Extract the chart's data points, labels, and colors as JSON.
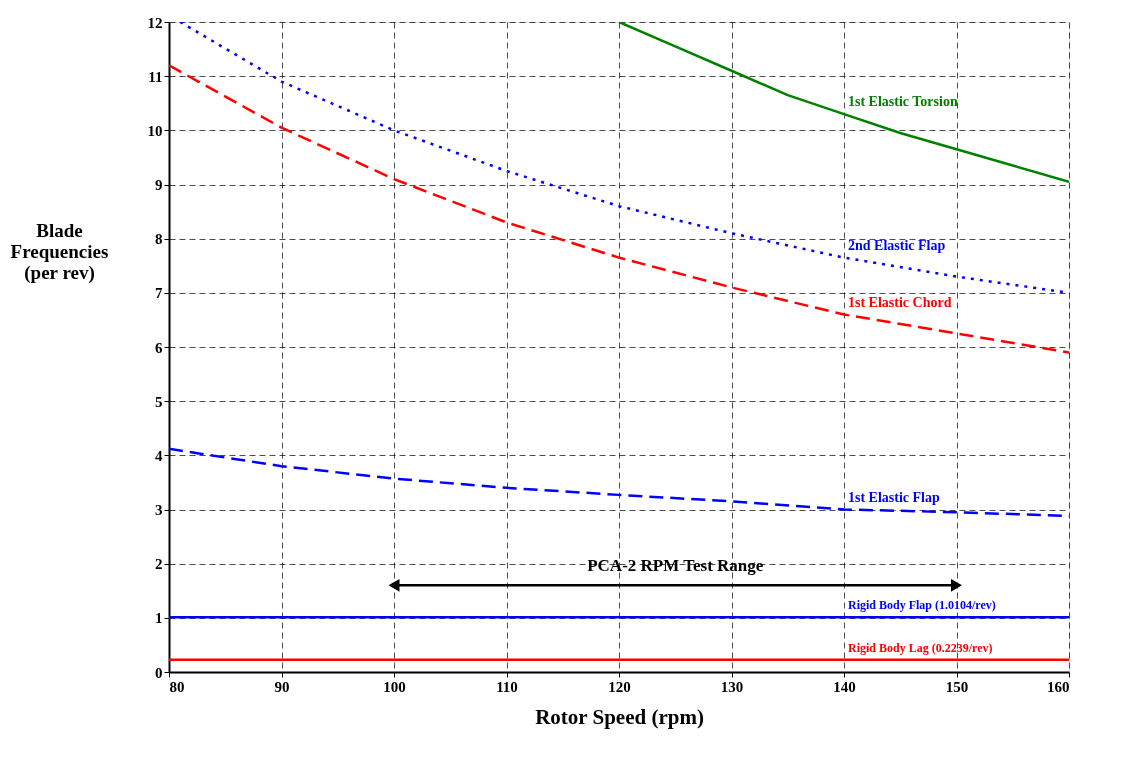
{
  "chart_data": {
    "type": "line",
    "xlabel": "Rotor Speed (rpm)",
    "ylabel": "Blade\nFrequencies\n(per rev)",
    "xlim": [
      80,
      160
    ],
    "xticks": [
      80,
      90,
      100,
      110,
      120,
      130,
      140,
      150,
      160
    ],
    "ylim": [
      0,
      12
    ],
    "yticks": [
      0,
      1,
      2,
      3,
      4,
      5,
      6,
      7,
      8,
      9,
      10,
      11,
      12
    ],
    "grid": true,
    "series": [
      {
        "name": "1st Elastic Torsion",
        "color": "#008000",
        "line_style": "solid",
        "x": [
          120,
          125,
          130,
          135,
          140,
          145,
          150,
          155,
          160
        ],
        "values": [
          12,
          11.55,
          11.1,
          10.65,
          10.3,
          9.95,
          9.65,
          9.35,
          9.05
        ]
      },
      {
        "name": "2nd Elastic Flap",
        "color": "#0000ff",
        "line_style": "dotted",
        "x": [
          81,
          90,
          100,
          110,
          120,
          130,
          140,
          150,
          160
        ],
        "values": [
          12,
          10.9,
          10.0,
          9.25,
          8.6,
          8.1,
          7.65,
          7.3,
          7.0
        ]
      },
      {
        "name": "1st Elastic Chord",
        "color": "#ff0000",
        "line_style": "dashed",
        "x": [
          80,
          90,
          100,
          105,
          110,
          120,
          130,
          140,
          150,
          160
        ],
        "values": [
          11.2,
          10.05,
          9.1,
          8.7,
          8.3,
          7.65,
          7.1,
          6.6,
          6.25,
          5.9
        ]
      },
      {
        "name": "1st Elastic Flap",
        "color": "#0000ff",
        "line_style": "dashed",
        "x": [
          80,
          90,
          100,
          110,
          120,
          130,
          140,
          150,
          160
        ],
        "values": [
          4.12,
          3.8,
          3.57,
          3.4,
          3.27,
          3.15,
          3.0,
          2.95,
          2.88
        ]
      },
      {
        "name": "Rigid Body Flap  (1.0104/rev)",
        "color": "#0000ff",
        "line_style": "solid",
        "x": [
          80,
          160
        ],
        "values": [
          1.0104,
          1.0104
        ]
      },
      {
        "name": "Rigid Body Lag  (0.2239/rev)",
        "color": "#ff0000",
        "line_style": "solid",
        "x": [
          80,
          160
        ],
        "values": [
          0.2239,
          0.2239
        ]
      },
      {
        "color": "#000000",
        "line_style": "solid",
        "marker": "triangle",
        "x": [
          100,
          150
        ],
        "values": [
          1.6,
          1.6
        ]
      }
    ],
    "annotations": [
      {
        "text": "PCA-2 RPM Test Range",
        "x": 125,
        "y": 1.6
      }
    ]
  }
}
